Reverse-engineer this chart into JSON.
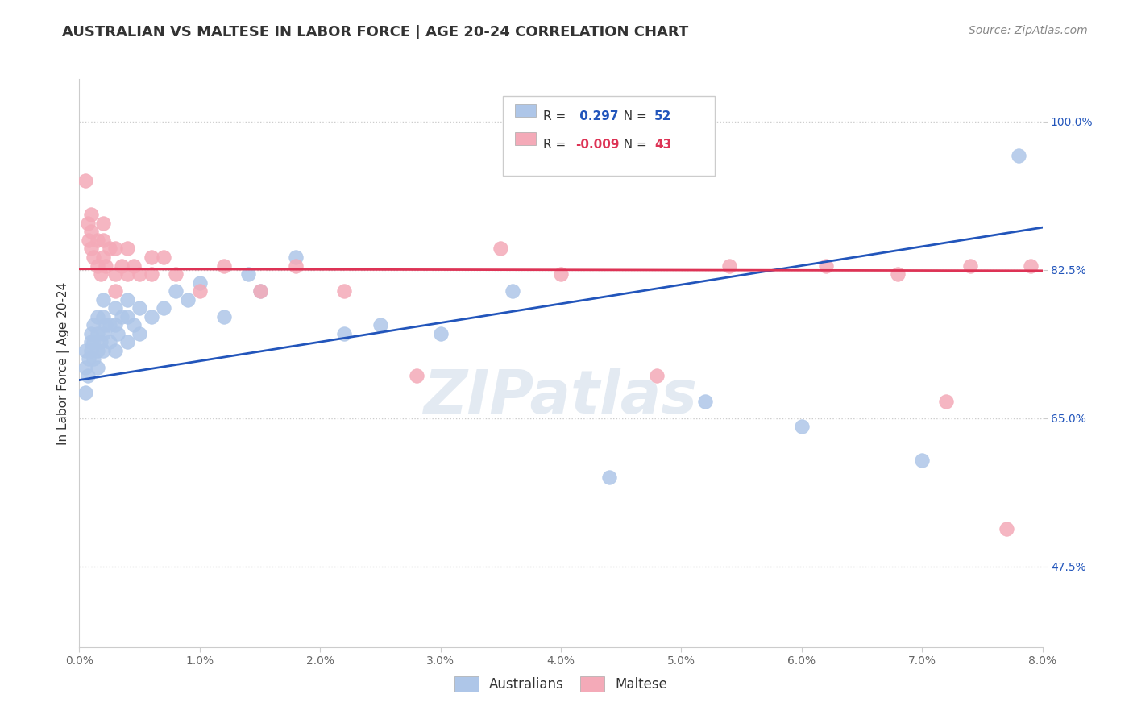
{
  "title": "AUSTRALIAN VS MALTESE IN LABOR FORCE | AGE 20-24 CORRELATION CHART",
  "source_text": "Source: ZipAtlas.com",
  "ylabel": "In Labor Force | Age 20-24",
  "xmin": 0.0,
  "xmax": 0.08,
  "ymin": 0.38,
  "ymax": 1.05,
  "australian_R": 0.297,
  "australian_N": 52,
  "maltese_R": -0.009,
  "maltese_N": 43,
  "australian_color": "#aec6e8",
  "maltese_color": "#f4aab8",
  "australian_line_color": "#2255bb",
  "maltese_line_color": "#dd3355",
  "watermark_color": "#ccd9e8",
  "title_color": "#333333",
  "source_color": "#888888",
  "grid_color": "#cccccc",
  "tick_color": "#666666",
  "australian_x": [
    0.0005,
    0.0005,
    0.0005,
    0.0007,
    0.0008,
    0.001,
    0.001,
    0.001,
    0.0012,
    0.0012,
    0.0012,
    0.0015,
    0.0015,
    0.0015,
    0.0015,
    0.0018,
    0.002,
    0.002,
    0.002,
    0.002,
    0.0022,
    0.0025,
    0.0025,
    0.003,
    0.003,
    0.003,
    0.0032,
    0.0035,
    0.004,
    0.004,
    0.004,
    0.0045,
    0.005,
    0.005,
    0.006,
    0.007,
    0.008,
    0.009,
    0.01,
    0.012,
    0.014,
    0.015,
    0.018,
    0.022,
    0.025,
    0.03,
    0.036,
    0.044,
    0.052,
    0.06,
    0.07,
    0.078
  ],
  "australian_y": [
    0.68,
    0.71,
    0.73,
    0.7,
    0.72,
    0.73,
    0.74,
    0.75,
    0.72,
    0.74,
    0.76,
    0.71,
    0.73,
    0.75,
    0.77,
    0.74,
    0.73,
    0.75,
    0.77,
    0.79,
    0.76,
    0.74,
    0.76,
    0.73,
    0.76,
    0.78,
    0.75,
    0.77,
    0.74,
    0.77,
    0.79,
    0.76,
    0.75,
    0.78,
    0.77,
    0.78,
    0.8,
    0.79,
    0.81,
    0.77,
    0.82,
    0.8,
    0.84,
    0.75,
    0.76,
    0.75,
    0.8,
    0.58,
    0.67,
    0.64,
    0.6,
    0.96
  ],
  "maltese_x": [
    0.0005,
    0.0007,
    0.0008,
    0.001,
    0.001,
    0.001,
    0.0012,
    0.0015,
    0.0015,
    0.0018,
    0.002,
    0.002,
    0.002,
    0.0022,
    0.0025,
    0.003,
    0.003,
    0.003,
    0.0035,
    0.004,
    0.004,
    0.0045,
    0.005,
    0.006,
    0.006,
    0.007,
    0.008,
    0.01,
    0.012,
    0.015,
    0.018,
    0.022,
    0.028,
    0.035,
    0.04,
    0.048,
    0.054,
    0.062,
    0.068,
    0.072,
    0.074,
    0.077,
    0.079
  ],
  "maltese_y": [
    0.93,
    0.88,
    0.86,
    0.85,
    0.87,
    0.89,
    0.84,
    0.83,
    0.86,
    0.82,
    0.84,
    0.86,
    0.88,
    0.83,
    0.85,
    0.8,
    0.82,
    0.85,
    0.83,
    0.82,
    0.85,
    0.83,
    0.82,
    0.82,
    0.84,
    0.84,
    0.82,
    0.8,
    0.83,
    0.8,
    0.83,
    0.8,
    0.7,
    0.85,
    0.82,
    0.7,
    0.83,
    0.83,
    0.82,
    0.67,
    0.83,
    0.52,
    0.83
  ],
  "aus_line_x0": 0.0,
  "aus_line_y0": 0.695,
  "aus_line_x1": 0.08,
  "aus_line_y1": 0.875,
  "mal_line_x0": 0.0,
  "mal_line_y0": 0.826,
  "mal_line_x1": 0.08,
  "mal_line_y1": 0.824
}
